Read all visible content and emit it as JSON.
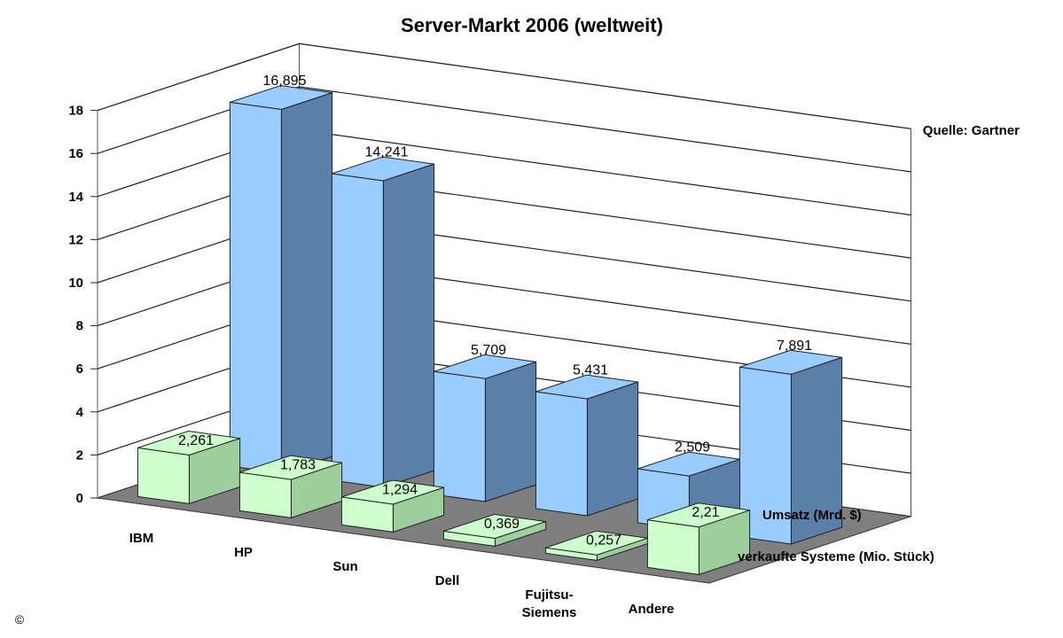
{
  "chart_data": {
    "type": "bar",
    "title": "Server-Markt 2006 (weltweit)",
    "source": "Quelle: Gartner",
    "copyright": "©",
    "categories": [
      "IBM",
      "HP",
      "Sun",
      "Dell",
      "Fujitsu-\nSiemens",
      "Andere"
    ],
    "ylim": [
      0,
      18
    ],
    "yticks": [
      0,
      2,
      4,
      6,
      8,
      10,
      12,
      14,
      16,
      18
    ],
    "grid": true,
    "three_d": true,
    "series": [
      {
        "name": "verkaufte Systeme (Mio. Stück)",
        "values": [
          2.261,
          1.783,
          1.294,
          0.369,
          0.257,
          2.21
        ],
        "labels": [
          "2,261",
          "1,783",
          "1,294",
          "0,369",
          "0,257",
          "2,21"
        ],
        "color": "#ccffcc"
      },
      {
        "name": "Umsatz (Mrd. $)",
        "values": [
          16.895,
          14.241,
          5.709,
          5.431,
          2.509,
          7.891
        ],
        "labels": [
          "16,895",
          "14,241",
          "5,709",
          "5,431",
          "2,509",
          "7,891"
        ],
        "color": "#99ccff"
      }
    ]
  }
}
